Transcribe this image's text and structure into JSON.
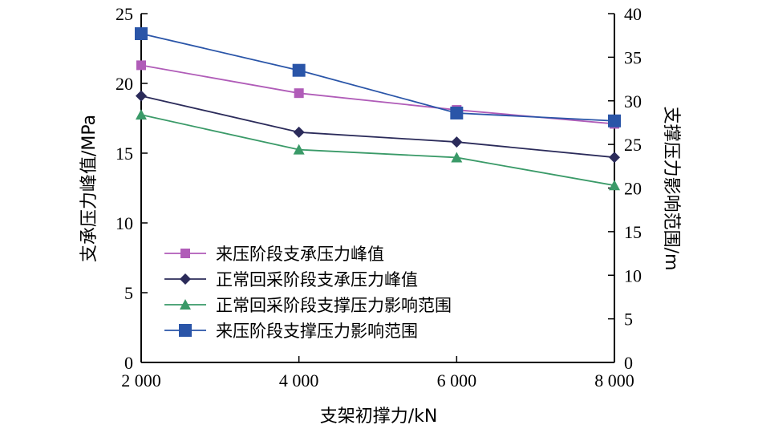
{
  "chart_data": {
    "type": "line",
    "x": [
      2000,
      4000,
      6000,
      8000
    ],
    "x_tick_labels": [
      "2 000",
      "4 000",
      "6 000",
      "8 000"
    ],
    "xlabel": "支架初撑力/kN",
    "ylabel_left": "支承压力峰值/MPa",
    "ylabel_right": "支撑压力影响范围/m",
    "ylim_left": [
      0,
      25
    ],
    "ylim_right": [
      0,
      40
    ],
    "yticks_left": [
      0,
      5,
      10,
      15,
      20,
      25
    ],
    "yticks_right": [
      0,
      5,
      10,
      15,
      20,
      25,
      30,
      35,
      40
    ],
    "grid": false,
    "legend_position": "lower-left",
    "series": [
      {
        "name": "来压阶段支承压力峰值",
        "axis": "left",
        "marker": "square-small",
        "color": "#b05cb8",
        "values": [
          21.3,
          19.3,
          18.1,
          17.1
        ]
      },
      {
        "name": "正常回采阶段支承压力峰值",
        "axis": "left",
        "marker": "diamond",
        "color": "#2b2b5a",
        "values": [
          19.1,
          16.5,
          15.8,
          14.7
        ]
      },
      {
        "name": "正常回采阶段支撑压力影响范围",
        "axis": "right",
        "marker": "triangle",
        "color": "#3a9a68",
        "values": [
          28.4,
          24.4,
          23.5,
          20.3
        ]
      },
      {
        "name": "来压阶段支撑压力影响范围",
        "axis": "right",
        "marker": "square",
        "color": "#2a55a8",
        "values": [
          37.7,
          33.5,
          28.6,
          27.7
        ]
      }
    ]
  }
}
